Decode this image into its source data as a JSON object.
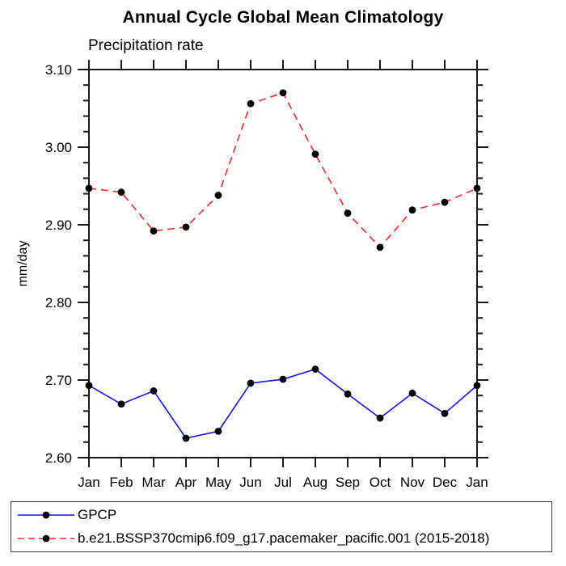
{
  "chart_data": {
    "type": "line",
    "title": "Annual Cycle Global Mean Climatology",
    "subtitle": "Precipitation rate",
    "ylabel": "mm/day",
    "categories": [
      "Jan",
      "Feb",
      "Mar",
      "Apr",
      "May",
      "Jun",
      "Jul",
      "Aug",
      "Sep",
      "Oct",
      "Nov",
      "Dec",
      "Jan"
    ],
    "series": [
      {
        "name": "GPCP",
        "color": "#1414f0",
        "line_style": "solid",
        "marker": "filled-black-circle",
        "values": [
          2.693,
          2.669,
          2.686,
          2.625,
          2.634,
          2.696,
          2.701,
          2.714,
          2.682,
          2.651,
          2.683,
          2.657,
          2.693
        ]
      },
      {
        "name": "b.e21.BSSP370cmip6.f09_g17.pacemaker_pacific.001 (2015-2018)",
        "color": "#f82828",
        "line_style": "dashed",
        "marker": "filled-black-circle",
        "values": [
          2.947,
          2.942,
          2.892,
          2.897,
          2.938,
          3.056,
          3.07,
          2.991,
          2.915,
          2.871,
          2.919,
          2.929,
          2.947
        ]
      }
    ],
    "ylim": [
      2.6,
      3.1
    ],
    "ytick_major": 0.1,
    "ytick_minor": 0.02,
    "ytick_labels": [
      "2.60",
      "2.70",
      "2.80",
      "2.90",
      "3.00",
      "3.10"
    ],
    "grid": "off",
    "tick_direction": "outward",
    "legend_position": "bottom-boxed",
    "marker_color": "#000000",
    "axis_color": "#1a1a1a"
  }
}
